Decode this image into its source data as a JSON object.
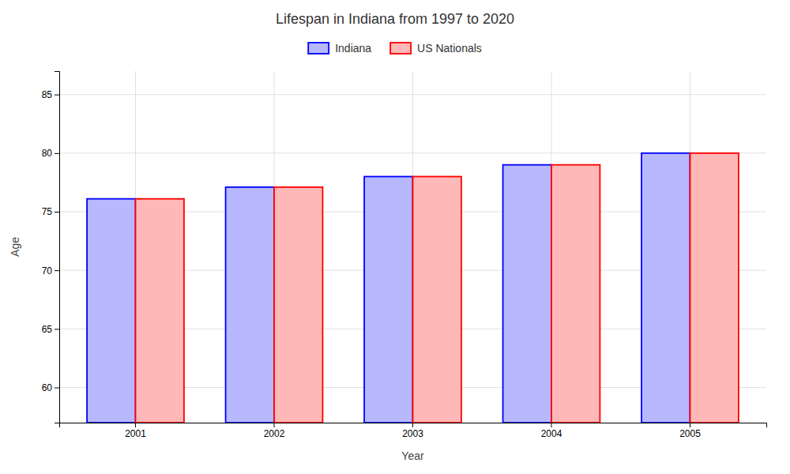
{
  "chart_data": {
    "type": "bar",
    "title": "Lifespan in Indiana from 1997 to 2020",
    "xlabel": "Year",
    "ylabel": "Age",
    "categories": [
      "2001",
      "2002",
      "2003",
      "2004",
      "2005"
    ],
    "series": [
      {
        "name": "Indiana",
        "color": "#0000ff",
        "values": [
          76.1,
          77.1,
          78.0,
          79.0,
          80.0
        ]
      },
      {
        "name": "US Nationals",
        "color": "#ff0000",
        "values": [
          76.1,
          77.1,
          78.0,
          79.0,
          80.0
        ]
      }
    ],
    "ylim": [
      57,
      87
    ],
    "yticks": [
      60,
      65,
      70,
      75,
      80,
      85
    ],
    "grid": true,
    "legend": "top"
  }
}
